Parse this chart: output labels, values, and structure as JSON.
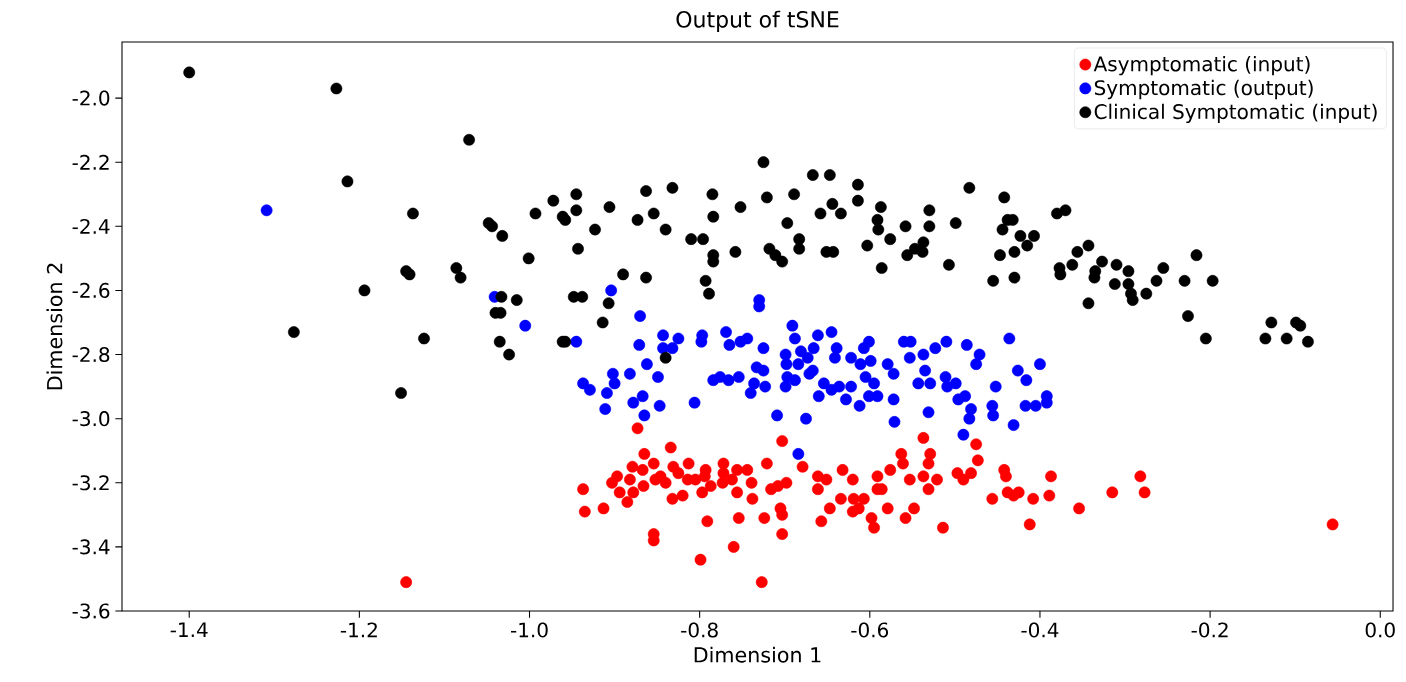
{
  "chart_data": {
    "type": "scatter",
    "title": "Output of tSNE",
    "xlabel": "Dimension 1",
    "ylabel": "Dimension 2",
    "xlim": [
      -1.479,
      0.015
    ],
    "ylim": [
      -3.6,
      -1.825
    ],
    "xticks": [
      -1.4,
      -1.2,
      {
        "value": -1.0,
        "label": "-1.0"
      },
      -0.8,
      -0.6,
      -0.4,
      -0.2,
      {
        "value": 0.0,
        "label": "0.0"
      }
    ],
    "yticks": [
      -3.6,
      -3.4,
      -3.2,
      {
        "value": -3.0,
        "label": "-3.0"
      },
      -2.8,
      -2.6,
      -2.4,
      -2.2,
      {
        "value": -2.0,
        "label": "-2.0"
      }
    ],
    "legend": "top right",
    "grid": false,
    "series": [
      {
        "name": "Asymptomatic (input)",
        "color": "#ff0000",
        "x": [
          -0.873,
          -0.703,
          -0.537,
          -0.475,
          -0.473,
          -0.563,
          -0.561,
          -0.531,
          -0.529,
          -0.865,
          -0.834,
          -0.879,
          -0.867,
          -0.854,
          -0.846,
          -0.831,
          -0.825,
          -0.813,
          -0.814,
          -0.805,
          -0.793,
          -0.794,
          -0.84,
          -0.852,
          -0.772,
          -0.772,
          -0.756,
          -0.744,
          -0.762,
          -0.773,
          -0.787,
          -0.797,
          -0.82,
          -0.832,
          -0.756,
          -0.739,
          -0.738,
          -0.721,
          -0.716,
          -0.708,
          -0.698,
          -0.679,
          -0.897,
          -0.903,
          -0.937,
          -0.882,
          -0.894,
          -0.878,
          -0.866,
          -0.885,
          -0.913,
          -0.935,
          -0.791,
          -0.754,
          -0.724,
          -0.705,
          -0.703,
          -0.703,
          -0.854,
          -0.854,
          -0.76,
          -0.799,
          -0.727,
          -0.661,
          -0.651,
          -0.661,
          -0.632,
          -0.62,
          -0.591,
          -0.576,
          -0.591,
          -0.586,
          -0.634,
          -0.619,
          -0.607,
          -0.647,
          -0.62,
          -0.613,
          -0.598,
          -0.595,
          -0.657,
          -0.579,
          -0.558,
          -0.548,
          -0.553,
          -0.537,
          -0.521,
          -0.531,
          -0.514,
          -0.497,
          -0.49,
          -0.481,
          -0.442,
          -0.44,
          -0.456,
          -0.438,
          -0.431,
          -0.425,
          -0.408,
          -0.387,
          -0.389,
          -0.412,
          -0.354,
          -0.315,
          -0.282,
          -0.277,
          -0.056,
          -1.145
        ],
        "values": [
          -3.03,
          -3.07,
          -3.06,
          -3.08,
          -3.13,
          -3.11,
          -3.14,
          -3.14,
          -3.11,
          -3.11,
          -3.09,
          -3.15,
          -3.16,
          -3.14,
          -3.18,
          -3.15,
          -3.17,
          -3.14,
          -3.19,
          -3.19,
          -3.16,
          -3.18,
          -3.2,
          -3.19,
          -3.14,
          -3.17,
          -3.16,
          -3.16,
          -3.19,
          -3.2,
          -3.21,
          -3.23,
          -3.24,
          -3.25,
          -3.23,
          -3.2,
          -3.25,
          -3.14,
          -3.22,
          -3.21,
          -3.2,
          -3.15,
          -3.18,
          -3.2,
          -3.22,
          -3.19,
          -3.23,
          -3.23,
          -3.21,
          -3.26,
          -3.28,
          -3.29,
          -3.32,
          -3.31,
          -3.31,
          -3.28,
          -3.3,
          -3.36,
          -3.36,
          -3.38,
          -3.4,
          -3.44,
          -3.51,
          -3.18,
          -3.19,
          -3.22,
          -3.16,
          -3.19,
          -3.18,
          -3.16,
          -3.22,
          -3.22,
          -3.25,
          -3.25,
          -3.25,
          -3.28,
          -3.29,
          -3.28,
          -3.31,
          -3.34,
          -3.32,
          -3.28,
          -3.31,
          -3.28,
          -3.19,
          -3.18,
          -3.19,
          -3.22,
          -3.34,
          -3.17,
          -3.19,
          -3.17,
          -3.16,
          -3.18,
          -3.25,
          -3.23,
          -3.24,
          -3.23,
          -3.25,
          -3.18,
          -3.24,
          -3.33,
          -3.28,
          -3.23,
          -3.18,
          -3.23,
          -3.33,
          -3.51
        ]
      },
      {
        "name": "Symptomatic (output)",
        "color": "#0000ff",
        "x": [
          -1.309,
          -1.041,
          -1.005,
          -0.904,
          -0.945,
          -0.87,
          -0.73,
          -0.73,
          -0.843,
          -0.825,
          -0.871,
          -0.843,
          -0.832,
          -0.797,
          -0.798,
          -0.769,
          -0.765,
          -0.752,
          -0.744,
          -0.725,
          -0.691,
          -0.688,
          -0.661,
          -0.645,
          -0.666,
          -0.699,
          -0.681,
          -0.673,
          -0.698,
          -0.684,
          -0.667,
          -0.671,
          -0.639,
          -0.641,
          -0.622,
          -0.601,
          -0.607,
          -0.599,
          -0.611,
          -0.579,
          -0.572,
          -0.56,
          -0.552,
          -0.553,
          -0.537,
          -0.523,
          -0.51,
          -0.486,
          -0.471,
          -0.475,
          -0.436,
          -0.4,
          -0.426,
          -0.416,
          -0.535,
          -0.543,
          -0.529,
          -0.511,
          -0.499,
          -0.509,
          -0.452,
          -0.496,
          -0.488,
          -0.481,
          -0.483,
          -0.456,
          -0.455,
          -0.417,
          -0.405,
          -0.392,
          -0.392,
          -0.431,
          -0.49,
          -0.531,
          -0.571,
          -0.605,
          -0.595,
          -0.591,
          -0.601,
          -0.572,
          -0.612,
          -0.628,
          -0.66,
          -0.654,
          -0.645,
          -0.636,
          -0.622,
          -0.675,
          -0.709,
          -0.697,
          -0.688,
          -0.699,
          -0.74,
          -0.736,
          -0.723,
          -0.733,
          -0.725,
          -0.784,
          -0.776,
          -0.766,
          -0.754,
          -0.902,
          -0.9,
          -0.882,
          -0.862,
          -0.849,
          -0.937,
          -0.929,
          -0.909,
          -0.911,
          -0.878,
          -0.867,
          -0.865,
          -0.847,
          -0.806,
          -0.684
        ],
        "values": [
          -2.35,
          -2.62,
          -2.71,
          -2.6,
          -2.76,
          -2.68,
          -2.63,
          -2.65,
          -2.74,
          -2.75,
          -2.77,
          -2.78,
          -2.78,
          -2.74,
          -2.76,
          -2.73,
          -2.77,
          -2.76,
          -2.75,
          -2.78,
          -2.71,
          -2.75,
          -2.74,
          -2.73,
          -2.78,
          -2.8,
          -2.79,
          -2.81,
          -2.83,
          -2.83,
          -2.85,
          -2.86,
          -2.78,
          -2.81,
          -2.81,
          -2.76,
          -2.78,
          -2.82,
          -2.83,
          -2.83,
          -2.86,
          -2.76,
          -2.76,
          -2.81,
          -2.8,
          -2.78,
          -2.76,
          -2.77,
          -2.8,
          -2.83,
          -2.75,
          -2.83,
          -2.85,
          -2.88,
          -2.85,
          -2.89,
          -2.89,
          -2.87,
          -2.89,
          -2.9,
          -2.9,
          -2.94,
          -2.93,
          -2.97,
          -3.0,
          -2.96,
          -2.99,
          -2.96,
          -2.96,
          -2.93,
          -2.95,
          -3.02,
          -3.05,
          -2.98,
          -3.01,
          -2.87,
          -2.89,
          -2.93,
          -2.93,
          -2.94,
          -2.96,
          -2.94,
          -2.93,
          -2.89,
          -2.91,
          -2.9,
          -2.9,
          -3.0,
          -2.99,
          -2.87,
          -2.88,
          -2.9,
          -2.92,
          -2.89,
          -2.9,
          -2.84,
          -2.85,
          -2.88,
          -2.87,
          -2.88,
          -2.87,
          -2.86,
          -2.89,
          -2.86,
          -2.83,
          -2.87,
          -2.89,
          -2.91,
          -2.92,
          -2.97,
          -2.95,
          -2.93,
          -2.99,
          -2.96,
          -2.95,
          -3.11
        ]
      },
      {
        "name": "Clinical Symptomatic (input)",
        "color": "#000000",
        "x": [
          -1.4,
          -1.227,
          -1.071,
          -1.214,
          -1.137,
          -1.048,
          -1.044,
          -1.032,
          -0.993,
          -0.972,
          -0.961,
          -1.001,
          -1.145,
          -1.141,
          -1.086,
          -1.081,
          -1.194,
          -1.033,
          -1.015,
          -1.04,
          -1.034,
          -1.277,
          -1.124,
          -1.035,
          -1.024,
          -1.151,
          -0.961,
          -0.725,
          -0.667,
          -0.647,
          -0.614,
          -0.483,
          -0.945,
          -0.945,
          -0.958,
          -0.906,
          -0.863,
          -0.832,
          -0.785,
          -0.784,
          -0.873,
          -0.854,
          -0.752,
          -0.721,
          -0.689,
          -0.923,
          -0.84,
          -0.697,
          -0.658,
          -0.644,
          -0.634,
          -0.614,
          -0.587,
          -0.591,
          -0.59,
          -0.558,
          -0.53,
          -0.53,
          -0.499,
          -0.943,
          -0.81,
          -0.796,
          -0.784,
          -0.784,
          -0.758,
          -0.718,
          -0.711,
          -0.703,
          -0.683,
          -0.683,
          -0.651,
          -0.643,
          -0.603,
          -0.576,
          -0.556,
          -0.547,
          -0.537,
          -0.538,
          -0.586,
          -0.507,
          -0.89,
          -0.863,
          -0.793,
          -0.789,
          -0.948,
          -0.938,
          -0.907,
          -0.914,
          -0.958,
          -0.84,
          -0.442,
          -0.38,
          -0.37,
          -0.438,
          -0.432,
          -0.444,
          -0.423,
          -0.407,
          -0.415,
          -0.447,
          -0.43,
          -0.455,
          -0.43,
          -0.377,
          -0.376,
          -0.362,
          -0.356,
          -0.343,
          -0.327,
          -0.335,
          -0.336,
          -0.31,
          -0.312,
          -0.296,
          -0.296,
          -0.293,
          -0.291,
          -0.343,
          -0.275,
          -0.263,
          -0.255,
          -0.23,
          -0.216,
          -0.197,
          -0.226,
          -0.205,
          -0.128,
          -0.135,
          -0.099,
          -0.094,
          -0.11,
          -0.085
        ],
        "values": [
          -1.92,
          -1.97,
          -2.13,
          -2.26,
          -2.36,
          -2.39,
          -2.4,
          -2.43,
          -2.36,
          -2.32,
          -2.37,
          -2.5,
          -2.54,
          -2.55,
          -2.53,
          -2.56,
          -2.6,
          -2.62,
          -2.63,
          -2.67,
          -2.67,
          -2.73,
          -2.75,
          -2.76,
          -2.8,
          -2.92,
          -2.76,
          -2.2,
          -2.24,
          -2.24,
          -2.27,
          -2.28,
          -2.3,
          -2.35,
          -2.38,
          -2.34,
          -2.29,
          -2.28,
          -2.3,
          -2.37,
          -2.38,
          -2.36,
          -2.34,
          -2.31,
          -2.3,
          -2.41,
          -2.41,
          -2.39,
          -2.36,
          -2.33,
          -2.36,
          -2.32,
          -2.34,
          -2.38,
          -2.41,
          -2.4,
          -2.35,
          -2.4,
          -2.39,
          -2.47,
          -2.44,
          -2.44,
          -2.49,
          -2.51,
          -2.48,
          -2.47,
          -2.49,
          -2.51,
          -2.44,
          -2.47,
          -2.48,
          -2.48,
          -2.46,
          -2.44,
          -2.49,
          -2.47,
          -2.45,
          -2.48,
          -2.53,
          -2.52,
          -2.55,
          -2.56,
          -2.57,
          -2.61,
          -2.62,
          -2.62,
          -2.64,
          -2.7,
          -2.76,
          -2.81,
          -2.31,
          -2.36,
          -2.35,
          -2.38,
          -2.38,
          -2.41,
          -2.43,
          -2.43,
          -2.46,
          -2.49,
          -2.48,
          -2.57,
          -2.56,
          -2.53,
          -2.55,
          -2.52,
          -2.48,
          -2.46,
          -2.51,
          -2.54,
          -2.56,
          -2.52,
          -2.58,
          -2.54,
          -2.58,
          -2.61,
          -2.63,
          -2.64,
          -2.61,
          -2.57,
          -2.53,
          -2.57,
          -2.49,
          -2.57,
          -2.68,
          -2.75,
          -2.7,
          -2.75,
          -2.7,
          -2.71,
          -2.75,
          -2.76
        ]
      }
    ]
  }
}
